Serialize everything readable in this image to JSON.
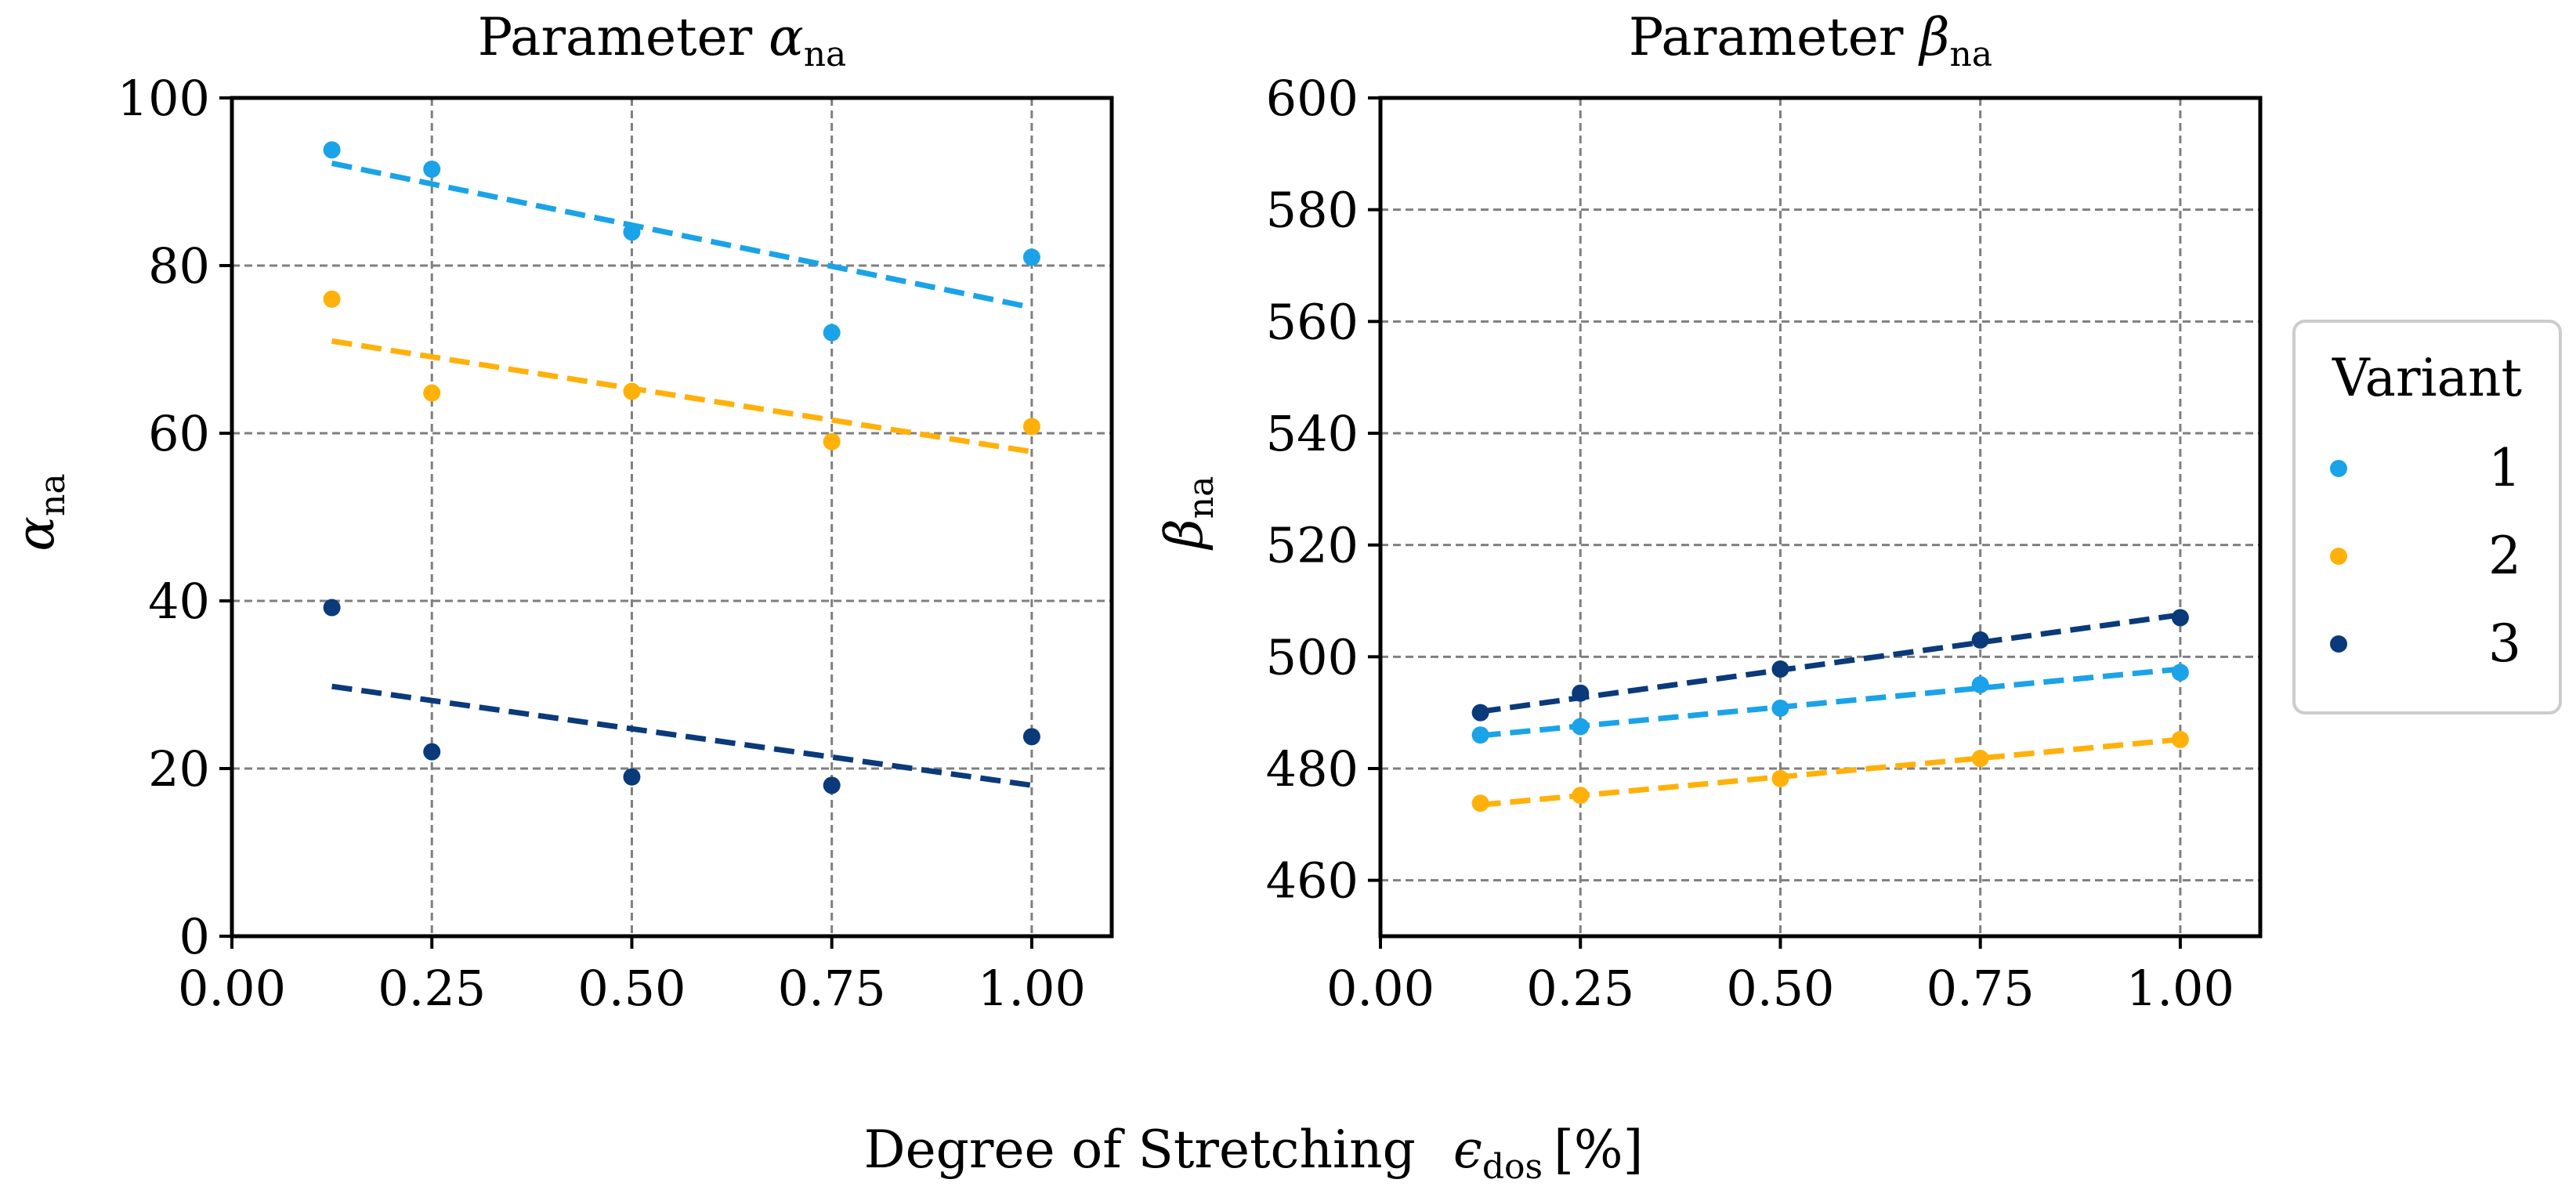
{
  "chart_data": [
    {
      "type": "scatter",
      "title_main": "Parameter ",
      "title_symbol": "α",
      "title_sub": "na",
      "ylabel_symbol": "α",
      "ylabel_sub": "na",
      "xlim": [
        0.0,
        1.1
      ],
      "ylim": [
        0,
        100
      ],
      "xticks": [
        0.0,
        0.25,
        0.5,
        0.75,
        1.0
      ],
      "xtick_labels": [
        "0.00",
        "0.25",
        "0.50",
        "0.75",
        "1.00"
      ],
      "yticks": [
        0,
        20,
        40,
        60,
        80,
        100
      ],
      "ytick_labels": [
        "0",
        "20",
        "40",
        "60",
        "80",
        "100"
      ],
      "grid": true,
      "x": [
        0.125,
        0.25,
        0.5,
        0.75,
        1.0
      ],
      "series": [
        {
          "name": "1",
          "values": [
            93.8,
            91.5,
            84.0,
            72.0,
            81.0
          ],
          "fit": [
            [
              0.125,
              92.2
            ],
            [
              1.0,
              75.0
            ]
          ]
        },
        {
          "name": "2",
          "values": [
            76.0,
            64.8,
            65.0,
            59.0,
            60.8
          ],
          "fit": [
            [
              0.125,
              71.0
            ],
            [
              1.0,
              57.8
            ]
          ]
        },
        {
          "name": "3",
          "values": [
            39.2,
            22.0,
            19.0,
            18.0,
            23.8
          ],
          "fit": [
            [
              0.125,
              29.8
            ],
            [
              1.0,
              18.0
            ]
          ]
        }
      ]
    },
    {
      "type": "scatter",
      "title_main": "Parameter ",
      "title_symbol": "β",
      "title_sub": "na",
      "ylabel_symbol": "β",
      "ylabel_sub": "na",
      "xlim": [
        0.0,
        1.1
      ],
      "ylim": [
        450,
        600
      ],
      "xticks": [
        0.0,
        0.25,
        0.5,
        0.75,
        1.0
      ],
      "xtick_labels": [
        "0.00",
        "0.25",
        "0.50",
        "0.75",
        "1.00"
      ],
      "yticks": [
        460,
        480,
        500,
        520,
        540,
        560,
        580,
        600
      ],
      "ytick_labels": [
        "460",
        "480",
        "500",
        "520",
        "540",
        "560",
        "580",
        "600"
      ],
      "grid": true,
      "x": [
        0.125,
        0.25,
        0.5,
        0.75,
        1.0
      ],
      "series": [
        {
          "name": "1",
          "values": [
            486.0,
            487.5,
            490.8,
            495.0,
            497.2
          ],
          "fit": [
            [
              0.125,
              485.9
            ],
            [
              1.0,
              497.8
            ]
          ]
        },
        {
          "name": "2",
          "values": [
            473.8,
            475.2,
            478.2,
            481.8,
            485.2
          ],
          "fit": [
            [
              0.125,
              473.5
            ],
            [
              1.0,
              485.2
            ]
          ]
        },
        {
          "name": "3",
          "values": [
            490.0,
            493.5,
            497.8,
            503.0,
            507.0
          ],
          "fit": [
            [
              0.125,
              490.2
            ],
            [
              1.0,
              507.5
            ]
          ]
        }
      ]
    }
  ],
  "xlabel_main": "Degree of Stretching",
  "xlabel_symbol": "ϵ",
  "xlabel_sub": "dos",
  "xlabel_unit": "[%]",
  "legend": {
    "title": "Variant",
    "placement": "right",
    "entries": [
      "1",
      "2",
      "3"
    ]
  },
  "colors": {
    "series": [
      "#1aa3e8",
      "#ffb10a",
      "#0a3a7a"
    ],
    "grid": "#7f7f7f",
    "axes": "#000000",
    "legend_border": "#cccccc"
  }
}
